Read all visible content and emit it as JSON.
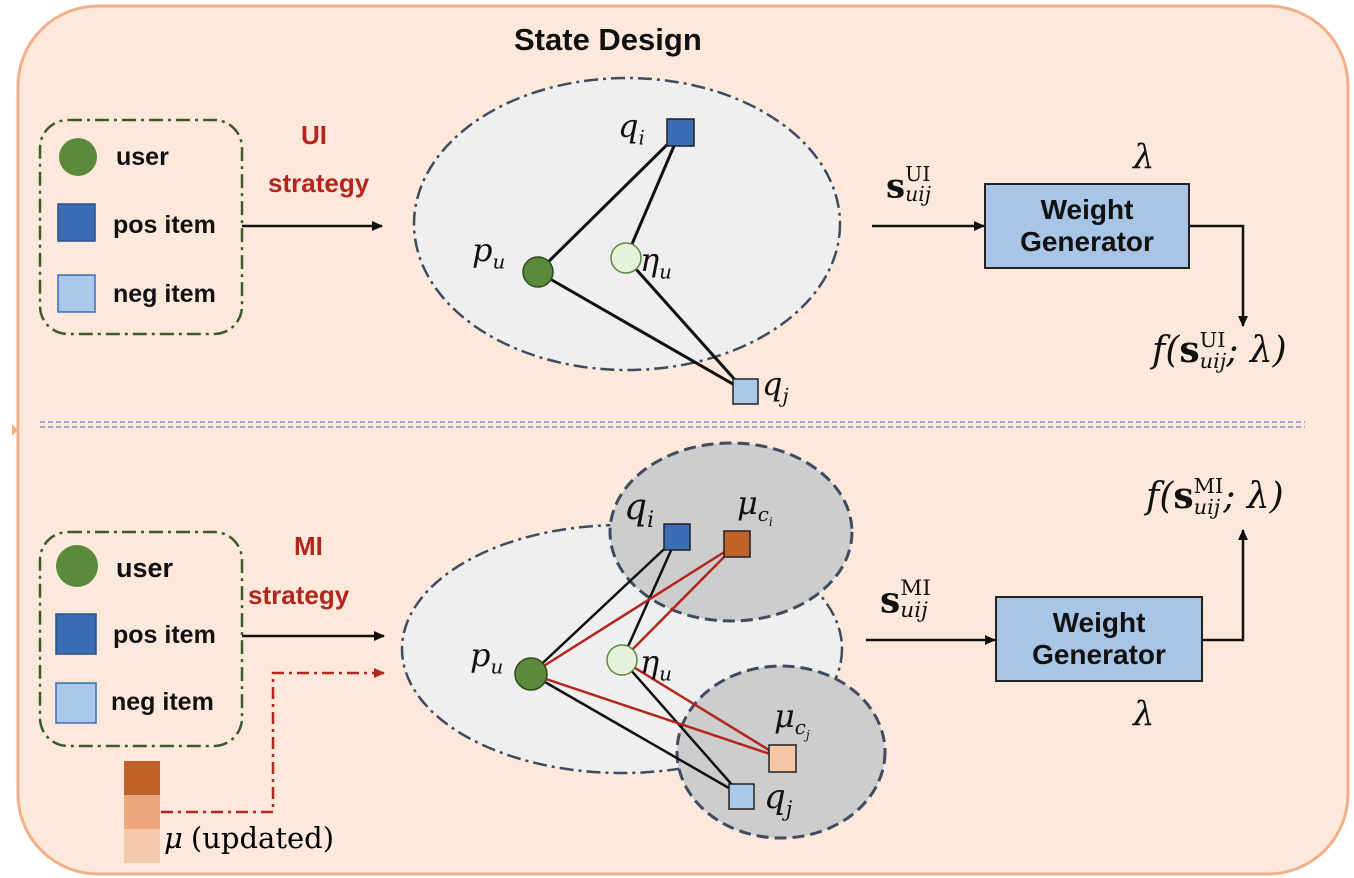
{
  "title": "State Design",
  "ui_panel": {
    "legend": {
      "user": "user",
      "pos_item": "pos item",
      "neg_item": "neg item"
    },
    "strategy_line1": "UI",
    "strategy_line2": "strategy",
    "nodes": {
      "q_i": "q",
      "q_i_sub": "i",
      "p_u": "p",
      "p_u_sub": "u",
      "eta_u": "η",
      "eta_u_sub": "u",
      "q_j": "q",
      "q_j_sub": "j"
    },
    "state_vector": {
      "base": "s",
      "sub": "uij",
      "sup": "UI"
    },
    "weight_generator": {
      "line1": "Weight",
      "line2": "Generator"
    },
    "lambda": "λ",
    "output": {
      "prefix": "f(",
      "base": "s",
      "sub": "uij",
      "sup": "UI",
      "suffix": "; λ)"
    }
  },
  "mi_panel": {
    "legend": {
      "user": "user",
      "pos_item": "pos item",
      "neg_item": "neg item"
    },
    "strategy_line1": "MI",
    "strategy_line2": "strategy",
    "nodes": {
      "q_i": "q",
      "q_i_sub": "i",
      "mu_ci": "μ",
      "mu_ci_sub": "c",
      "mu_ci_subsub": "i",
      "p_u": "p",
      "p_u_sub": "u",
      "eta_u": "η",
      "eta_u_sub": "u",
      "mu_cj": "μ",
      "mu_cj_sub": "c",
      "mu_cj_subsub": "j",
      "q_j": "q",
      "q_j_sub": "j"
    },
    "state_vector": {
      "base": "s",
      "sub": "uij",
      "sup": "MI"
    },
    "weight_generator": {
      "line1": "Weight",
      "line2": "Generator"
    },
    "lambda": "λ",
    "output": {
      "prefix": "f(",
      "base": "s",
      "sub": "uij",
      "sup": "MI",
      "suffix": "; λ)"
    },
    "mu_updated": {
      "symbol": "μ",
      "text": "(updated)"
    }
  },
  "colors": {
    "background": "#fde9dc",
    "border": "#f2b089",
    "user": "#5b8a3c",
    "pos_item": "#3a6db3",
    "neg_item": "#a9c8ea",
    "eta": "#e6f2dc",
    "mu_ci": "#c0622a",
    "mu_cj": "#f6c7a6",
    "red_line": "#b3261e",
    "strategy_text": "#b3261e"
  }
}
